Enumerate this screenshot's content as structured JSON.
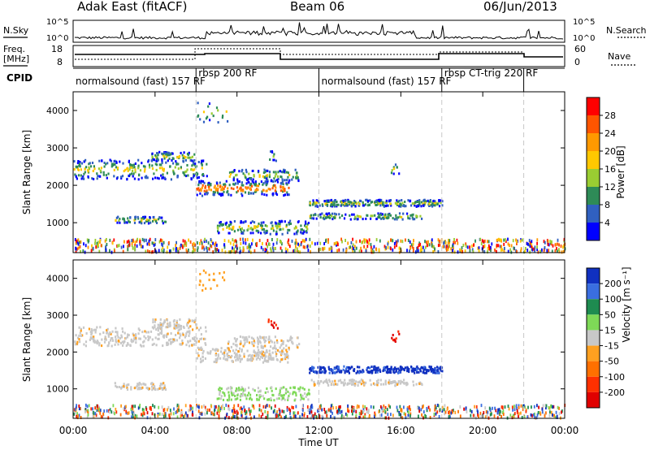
{
  "header": {
    "radar": "Adak East (fitACF)",
    "beam": "Beam 06",
    "date": "06/Jun/2013"
  },
  "noise_panel": {
    "left_label": "N.Sky",
    "right_label": "N.Search",
    "left_ticks": [
      "10^5",
      "10^0"
    ],
    "right_ticks": [
      "10^5",
      "10^0"
    ]
  },
  "freq_panel": {
    "left_label_top": "Freq.",
    "left_label_unit": "[MHz]",
    "right_label": "Nave",
    "left_ticks": [
      "18",
      "8"
    ],
    "right_ticks": [
      "60",
      "0"
    ]
  },
  "cpid_panel": {
    "label": "CPID",
    "programs": [
      {
        "name": "normalsound (fast) 157 RF",
        "start_hour": 0,
        "end_hour": 6
      },
      {
        "name": "rbsp 200 RF",
        "start_hour": 6,
        "end_hour": 12
      },
      {
        "name": "normalsound (fast) 157 RF",
        "start_hour": 12,
        "end_hour": 18
      },
      {
        "name": "rbsp CT-trig 220 RF",
        "start_hour": 18,
        "end_hour": 22
      }
    ]
  },
  "power_panel": {
    "ylabel": "Slant Range [km]",
    "cbar_label": "Power [dB]",
    "cbar_ticks": [
      "28",
      "24",
      "20",
      "16",
      "12",
      "8",
      "4"
    ],
    "cbar_colors": [
      "#ff0000",
      "#ff5500",
      "#ff9900",
      "#ffc800",
      "#9acd32",
      "#2e8b57",
      "#3060c0",
      "#0000ff"
    ]
  },
  "velocity_panel": {
    "ylabel": "Slant Range [km]",
    "cbar_label": "Velocity [m s⁻¹]",
    "cbar_ticks": [
      "200",
      "100",
      "50",
      "15",
      "-15",
      "-50",
      "-100",
      "-200"
    ],
    "cbar_colors": [
      "#1030c0",
      "#3a6ee0",
      "#1e8b50",
      "#7ed957",
      "#c8c8c8",
      "#ffa020",
      "#ff7000",
      "#ff3000",
      "#e00000"
    ]
  },
  "x_axis": {
    "label": "Time UT",
    "ticks": [
      "00:00",
      "04:00",
      "08:00",
      "12:00",
      "16:00",
      "20:00",
      "00:00"
    ]
  },
  "chart_data": {
    "type": "heatmap",
    "title": "Adak East (fitACF)  Beam 06  06/Jun/2013",
    "xlabel": "Time UT",
    "ylabel": "Slant Range [km]",
    "x_range_hours": [
      0,
      24
    ],
    "y_ticks": [
      1000,
      2000,
      3000,
      4000
    ],
    "y_range_km": [
      200,
      4500
    ],
    "power_colorbar": {
      "label": "Power [dB]",
      "levels": [
        4,
        8,
        12,
        16,
        20,
        24,
        28
      ]
    },
    "velocity_colorbar": {
      "label": "Velocity [m s⁻¹]",
      "levels": [
        200,
        100,
        50,
        15,
        -15,
        -50,
        -100,
        -200
      ]
    },
    "cpid_boundaries_hours": [
      6,
      12,
      18,
      22
    ]
  }
}
